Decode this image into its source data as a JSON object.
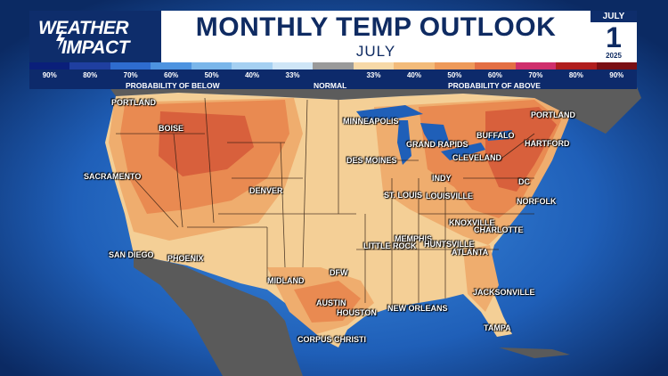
{
  "logo": {
    "line1": "WEATHER",
    "line2": "IMPACT"
  },
  "header": {
    "title": "MONTHLY TEMP OUTLOOK",
    "subtitle": "JULY"
  },
  "date": {
    "month": "JULY",
    "day": "1",
    "year": "2025"
  },
  "legend": {
    "below_caption": "PROBABILITY OF BELOW",
    "normal_caption": "NORMAL",
    "above_caption": "PROBABILITY OF ABOVE",
    "bins": [
      {
        "label": "90%",
        "color": "#0a1f7a"
      },
      {
        "label": "80%",
        "color": "#1f3fa0"
      },
      {
        "label": "70%",
        "color": "#2e6ccf"
      },
      {
        "label": "60%",
        "color": "#4d93e0"
      },
      {
        "label": "50%",
        "color": "#7ab6ea"
      },
      {
        "label": "40%",
        "color": "#a5d0f2"
      },
      {
        "label": "33%",
        "color": "#cfe6f7"
      },
      {
        "label": "",
        "color": "#9a9a9a"
      },
      {
        "label": "33%",
        "color": "#f7d9a8"
      },
      {
        "label": "40%",
        "color": "#f3bb7a"
      },
      {
        "label": "50%",
        "color": "#ee9a5a"
      },
      {
        "label": "60%",
        "color": "#e36f44"
      },
      {
        "label": "70%",
        "color": "#cf2f6c"
      },
      {
        "label": "80%",
        "color": "#b01e1e"
      },
      {
        "label": "90%",
        "color": "#7a0f14"
      }
    ]
  },
  "cities": [
    {
      "name": "PORTLAND"
    },
    {
      "name": "BOISE"
    },
    {
      "name": "SACRAMENTO"
    },
    {
      "name": "DENVER"
    },
    {
      "name": "SAN DIEGO"
    },
    {
      "name": "PHOENIX"
    },
    {
      "name": "MIDLAND"
    },
    {
      "name": "DFW"
    },
    {
      "name": "AUSTIN"
    },
    {
      "name": "HOUSTON"
    },
    {
      "name": "CORPUS CHRISTI"
    },
    {
      "name": "MINNEAPOLIS"
    },
    {
      "name": "DES MOINES"
    },
    {
      "name": "ST. LOUIS"
    },
    {
      "name": "LITTLE ROCK"
    },
    {
      "name": "MEMPHIS"
    },
    {
      "name": "NEW ORLEANS"
    },
    {
      "name": "GRAND RAPIDS"
    },
    {
      "name": "INDY"
    },
    {
      "name": "LOUISVILLE"
    },
    {
      "name": "KNOXVILLE"
    },
    {
      "name": "HUNTSVILLE"
    },
    {
      "name": "ATLANTA"
    },
    {
      "name": "CHARLOTTE"
    },
    {
      "name": "JACKSONVILLE"
    },
    {
      "name": "TAMPA"
    },
    {
      "name": "CLEVELAND"
    },
    {
      "name": "BUFFALO"
    },
    {
      "name": "PORTLAND"
    },
    {
      "name": "HARTFORD"
    },
    {
      "name": "DC"
    },
    {
      "name": "NORFOLK"
    }
  ]
}
